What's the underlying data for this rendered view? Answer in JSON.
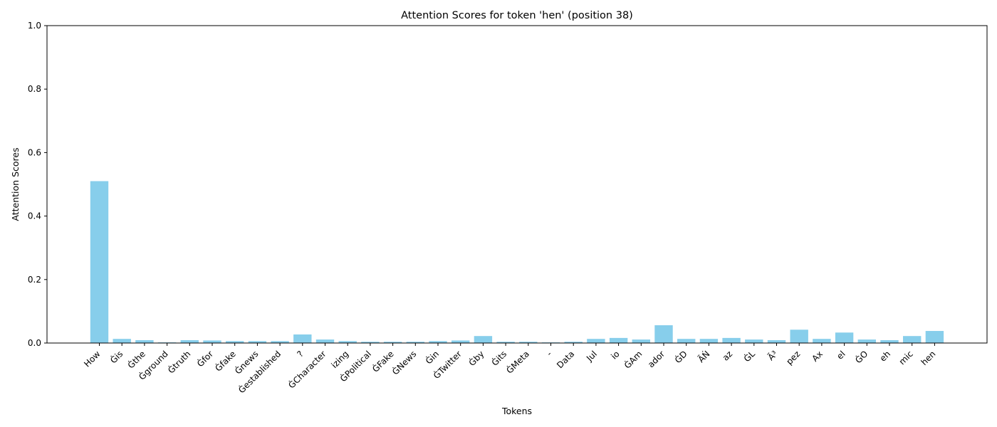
{
  "chart_data": {
    "type": "bar",
    "title": "Attention Scores for token 'hen' (position 38)",
    "xlabel": "Tokens",
    "ylabel": "Attention Scores",
    "ylim": [
      0,
      1.0
    ],
    "yticks": [
      "0.0",
      "0.2",
      "0.4",
      "0.6",
      "0.8",
      "1.0"
    ],
    "grid": false,
    "bar_color": "#87CEEB",
    "categories": [
      "How",
      "Ġis",
      "Ġthe",
      "Ġground",
      "Ġtruth",
      "Ġfor",
      "Ġfake",
      "Ġnews",
      "Ġestablished",
      "?",
      "ĠCharacter",
      "izing",
      "ĠPolitical",
      "ĠFake",
      "ĠNews",
      "Ġin",
      "ĠTwitter",
      "Ġby",
      "Ġits",
      "ĠMeta",
      "-",
      "Data",
      "Jul",
      "io",
      "ĠAm",
      "ador",
      "ĠD",
      "ÃŃ",
      "az",
      "ĠL",
      "Ã³",
      "pez",
      "Ax",
      "el",
      "ĠO",
      "eh",
      "mic",
      "hen"
    ],
    "values": [
      0.51,
      0.013,
      0.009,
      0.002,
      0.009,
      0.008,
      0.006,
      0.006,
      0.006,
      0.027,
      0.011,
      0.006,
      0.004,
      0.004,
      0.004,
      0.006,
      0.008,
      0.022,
      0.004,
      0.004,
      0.002,
      0.004,
      0.013,
      0.016,
      0.011,
      0.056,
      0.013,
      0.013,
      0.016,
      0.011,
      0.009,
      0.042,
      0.013,
      0.033,
      0.011,
      0.009,
      0.022,
      0.038
    ]
  }
}
